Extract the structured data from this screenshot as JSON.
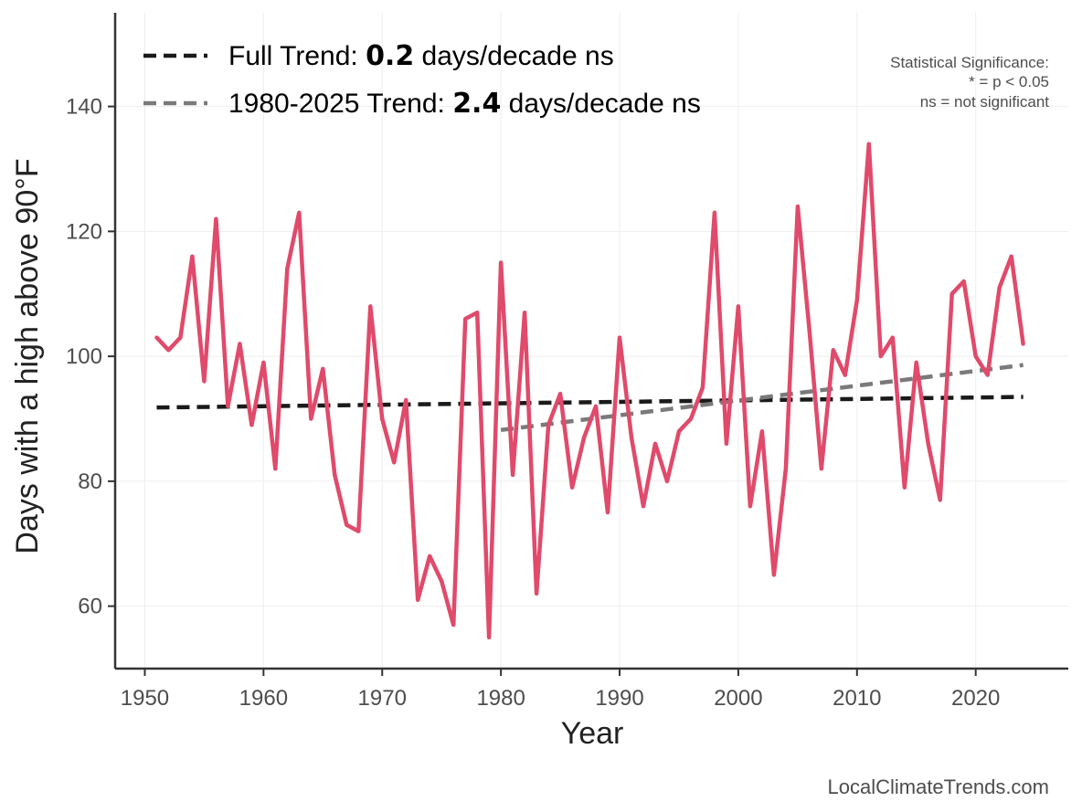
{
  "chart_data": {
    "type": "line",
    "xlabel": "Year",
    "ylabel": "Days with a high above 90°F",
    "xlim": [
      1947.5,
      2027.8
    ],
    "ylim": [
      50,
      155
    ],
    "x_ticks": [
      1950,
      1960,
      1970,
      1980,
      1990,
      2000,
      2010,
      2020
    ],
    "y_ticks": [
      60,
      80,
      100,
      120,
      140
    ],
    "grid": true,
    "series": [
      {
        "name": "Days with a high above 90°F",
        "color": "#e04a6b",
        "x": [
          1951,
          1952,
          1953,
          1954,
          1955,
          1956,
          1957,
          1958,
          1959,
          1960,
          1961,
          1962,
          1963,
          1964,
          1965,
          1966,
          1967,
          1968,
          1969,
          1970,
          1971,
          1972,
          1973,
          1974,
          1975,
          1976,
          1977,
          1978,
          1979,
          1980,
          1981,
          1982,
          1983,
          1984,
          1985,
          1986,
          1987,
          1988,
          1989,
          1990,
          1991,
          1992,
          1993,
          1994,
          1995,
          1996,
          1997,
          1998,
          1999,
          2000,
          2001,
          2002,
          2003,
          2004,
          2005,
          2006,
          2007,
          2008,
          2009,
          2010,
          2011,
          2012,
          2013,
          2014,
          2015,
          2016,
          2017,
          2018,
          2019,
          2020,
          2021,
          2022,
          2023,
          2024
        ],
        "values": [
          103,
          101,
          103,
          116,
          96,
          122,
          92,
          102,
          89,
          99,
          82,
          114,
          123,
          90,
          98,
          81,
          73,
          72,
          108,
          90,
          83,
          93,
          61,
          68,
          64,
          57,
          106,
          107,
          55,
          115,
          81,
          107,
          62,
          89,
          94,
          79,
          87,
          92,
          75,
          103,
          87,
          76,
          86,
          80,
          88,
          90,
          95,
          123,
          86,
          108,
          76,
          88,
          65,
          82,
          124,
          104,
          82,
          101,
          97,
          109,
          134,
          100,
          103,
          79,
          99,
          86,
          77,
          110,
          112,
          100,
          97,
          111,
          116,
          102
        ]
      }
    ],
    "trends": [
      {
        "name": "Full Trend",
        "x": [
          1951,
          2024
        ],
        "values": [
          91.8,
          93.5
        ],
        "color": "#1a1a1a"
      },
      {
        "name": "1980-2025 Trend",
        "x": [
          1980,
          2024
        ],
        "values": [
          88.2,
          98.6
        ],
        "color": "#7a7a7a"
      }
    ],
    "legend": [
      {
        "prefix": "Full Trend: ",
        "value": "0.2",
        "suffix": " days/decade ns"
      },
      {
        "prefix": "1980-2025 Trend: ",
        "value": "2.4",
        "suffix": " days/decade ns"
      }
    ],
    "legend_position": "top-left",
    "significance_note": [
      "Statistical Significance:",
      "* = p < 0.05",
      "ns = not significant"
    ],
    "source": "LocalClimateTrends.com"
  }
}
